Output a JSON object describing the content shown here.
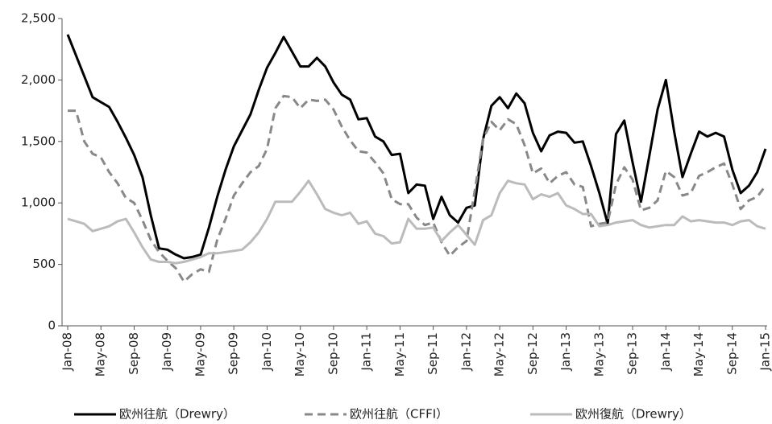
{
  "chart_data": {
    "type": "line",
    "categories": [
      "Jan-08",
      null,
      null,
      null,
      "May-08",
      null,
      null,
      null,
      "Sep-08",
      null,
      null,
      null,
      "Jan-09",
      null,
      null,
      null,
      "May-09",
      null,
      null,
      null,
      "Sep-09",
      null,
      null,
      null,
      "Jan-10",
      null,
      null,
      null,
      "May-10",
      null,
      null,
      null,
      "Sep-10",
      null,
      null,
      null,
      "Jan-11",
      null,
      null,
      null,
      "May-11",
      null,
      null,
      null,
      "Sep-11",
      null,
      null,
      null,
      "Jan-12",
      null,
      null,
      null,
      "May-12",
      null,
      null,
      null,
      "Sep-12",
      null,
      null,
      null,
      "Jan-13",
      null,
      null,
      null,
      "May-13",
      null,
      null,
      null,
      "Sep-13",
      null,
      null,
      null,
      "Jan-14",
      null,
      null,
      null,
      "May-14",
      null,
      null,
      null,
      "Sep-14",
      null,
      null,
      null,
      "Jan-15"
    ],
    "series": [
      {
        "name": "欧州往航（Drewry）",
        "color": "#000000",
        "dash": "none",
        "values": [
          2370,
          2200,
          2030,
          1860,
          1820,
          1780,
          1660,
          1530,
          1390,
          1210,
          900,
          630,
          620,
          580,
          550,
          560,
          580,
          800,
          1050,
          1270,
          1460,
          1590,
          1720,
          1920,
          2100,
          2220,
          2350,
          2230,
          2110,
          2110,
          2180,
          2110,
          1980,
          1880,
          1840,
          1680,
          1690,
          1540,
          1500,
          1390,
          1400,
          1080,
          1150,
          1140,
          870,
          1050,
          900,
          840,
          960,
          980,
          1520,
          1790,
          1860,
          1770,
          1890,
          1810,
          1570,
          1420,
          1550,
          1580,
          1570,
          1490,
          1500,
          1300,
          1080,
          830,
          1560,
          1670,
          1330,
          1010,
          1380,
          1760,
          2000,
          1580,
          1210,
          1400,
          1580,
          1540,
          1570,
          1540,
          1270,
          1080,
          1140,
          1250,
          1440
        ]
      },
      {
        "name": "欧州往航（CFFI）",
        "color": "#888888",
        "dash": "10 6",
        "values": [
          1750,
          1750,
          1500,
          1400,
          1370,
          1250,
          1160,
          1040,
          1000,
          860,
          700,
          600,
          530,
          470,
          360,
          420,
          460,
          440,
          700,
          870,
          1060,
          1160,
          1250,
          1300,
          1440,
          1770,
          1870,
          1860,
          1770,
          1840,
          1830,
          1840,
          1760,
          1620,
          1510,
          1420,
          1410,
          1330,
          1240,
          1030,
          990,
          990,
          880,
          820,
          840,
          680,
          570,
          640,
          690,
          1100,
          1520,
          1660,
          1590,
          1680,
          1640,
          1470,
          1240,
          1280,
          1160,
          1220,
          1250,
          1150,
          1130,
          810,
          830,
          840,
          1150,
          1290,
          1190,
          940,
          960,
          1020,
          1260,
          1210,
          1060,
          1080,
          1220,
          1250,
          1290,
          1320,
          1150,
          950,
          1020,
          1050,
          1140
        ]
      },
      {
        "name": "欧州復航（Drewry）",
        "color": "#bbbbbb",
        "dash": "none",
        "values": [
          870,
          850,
          830,
          770,
          790,
          810,
          850,
          870,
          760,
          640,
          540,
          520,
          520,
          510,
          520,
          540,
          560,
          590,
          590,
          600,
          610,
          620,
          680,
          760,
          870,
          1010,
          1010,
          1010,
          1090,
          1180,
          1070,
          950,
          920,
          900,
          920,
          830,
          850,
          750,
          730,
          670,
          680,
          870,
          790,
          790,
          800,
          690,
          760,
          820,
          740,
          660,
          860,
          900,
          1080,
          1180,
          1160,
          1150,
          1030,
          1070,
          1050,
          1080,
          980,
          950,
          910,
          910,
          810,
          820,
          840,
          850,
          860,
          820,
          800,
          810,
          820,
          820,
          890,
          850,
          860,
          850,
          840,
          840,
          820,
          850,
          860,
          810,
          790
        ]
      }
    ],
    "ylim": [
      0,
      2500
    ],
    "yticks": [
      0,
      500,
      {
        "value": 1000,
        "label": "1,000"
      },
      {
        "value": 1500,
        "label": "1,500"
      },
      {
        "value": 2000,
        "label": "2,000"
      },
      {
        "value": 2500,
        "label": "2,500"
      }
    ],
    "grid": false,
    "legend": "bottom"
  }
}
